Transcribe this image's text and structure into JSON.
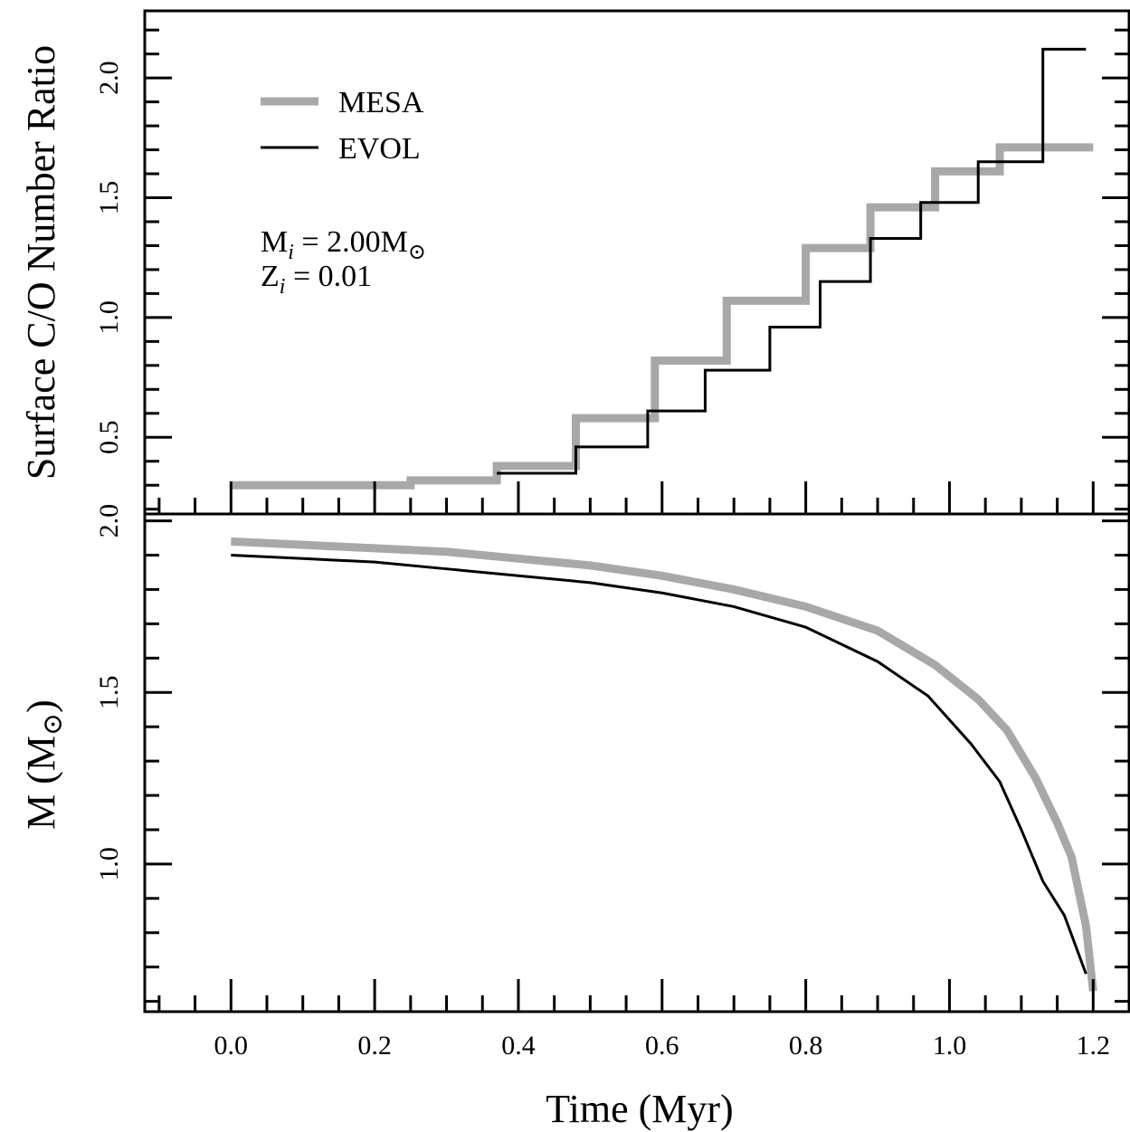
{
  "chart_data": [
    {
      "type": "line",
      "panel": "top",
      "ylabel": "Surface C/O Number Ratio",
      "xlim": [
        -0.12,
        1.25
      ],
      "ylim": [
        0.18,
        2.28
      ],
      "y_ticks": [
        0.5,
        1.0,
        1.5,
        2.0
      ],
      "y_tick_labels": [
        "0.5",
        "1.0",
        "1.5",
        "2.0"
      ],
      "legend": {
        "placement": "top-left",
        "entries": [
          {
            "label": "MESA",
            "color": "#a8a8a8"
          },
          {
            "label": "EVOL",
            "color": "#000000"
          }
        ]
      },
      "annotation": {
        "line1_pre": "M",
        "line1_sub": "i",
        "line1_mid": " = 2.00M",
        "line1_sym": "⊙",
        "line2_pre": "Z",
        "line2_sub": "i",
        "line2_mid": " = 0.01"
      },
      "series": [
        {
          "name": "MESA",
          "color": "#a8a8a8",
          "step": true,
          "x": [
            0.0,
            0.25,
            0.37,
            0.48,
            0.59,
            0.69,
            0.8,
            0.89,
            0.98,
            1.07,
            1.2
          ],
          "y": [
            0.3,
            0.32,
            0.38,
            0.58,
            0.82,
            1.07,
            1.29,
            1.46,
            1.61,
            1.71,
            1.71
          ]
        },
        {
          "name": "EVOL",
          "color": "#000000",
          "step": true,
          "x": [
            0.37,
            0.48,
            0.58,
            0.66,
            0.75,
            0.82,
            0.89,
            0.96,
            1.04,
            1.13,
            1.19
          ],
          "y": [
            0.35,
            0.46,
            0.61,
            0.78,
            0.96,
            1.15,
            1.33,
            1.48,
            1.65,
            2.12,
            2.12
          ]
        }
      ]
    },
    {
      "type": "line",
      "panel": "bottom",
      "xlabel": "Time (Myr)",
      "ylabel_pre": "M (M",
      "ylabel_sym": "⊙",
      "ylabel_post": ")",
      "xlim": [
        -0.12,
        1.25
      ],
      "ylim": [
        0.57,
        2.02
      ],
      "x_ticks": [
        0.0,
        0.2,
        0.4,
        0.6,
        0.8,
        1.0,
        1.2
      ],
      "x_tick_labels": [
        "0.0",
        "0.2",
        "0.4",
        "0.6",
        "0.8",
        "1.0",
        "1.2"
      ],
      "y_ticks": [
        1.0,
        1.5,
        2.0
      ],
      "y_tick_labels": [
        "1.0",
        "1.5",
        "2.0"
      ],
      "series": [
        {
          "name": "MESA",
          "color": "#a8a8a8",
          "x": [
            0.0,
            0.1,
            0.2,
            0.3,
            0.4,
            0.5,
            0.6,
            0.7,
            0.8,
            0.9,
            0.98,
            1.04,
            1.08,
            1.12,
            1.15,
            1.17,
            1.19,
            1.2
          ],
          "y": [
            1.94,
            1.93,
            1.92,
            1.91,
            1.89,
            1.87,
            1.84,
            1.8,
            1.75,
            1.68,
            1.58,
            1.48,
            1.39,
            1.25,
            1.12,
            1.02,
            0.82,
            0.63
          ]
        },
        {
          "name": "EVOL",
          "color": "#000000",
          "x": [
            0.0,
            0.1,
            0.2,
            0.3,
            0.4,
            0.5,
            0.6,
            0.7,
            0.8,
            0.9,
            0.97,
            1.03,
            1.07,
            1.1,
            1.13,
            1.16,
            1.19
          ],
          "y": [
            1.9,
            1.89,
            1.88,
            1.86,
            1.84,
            1.82,
            1.79,
            1.75,
            1.69,
            1.59,
            1.49,
            1.35,
            1.24,
            1.1,
            0.95,
            0.85,
            0.68
          ]
        }
      ]
    }
  ]
}
